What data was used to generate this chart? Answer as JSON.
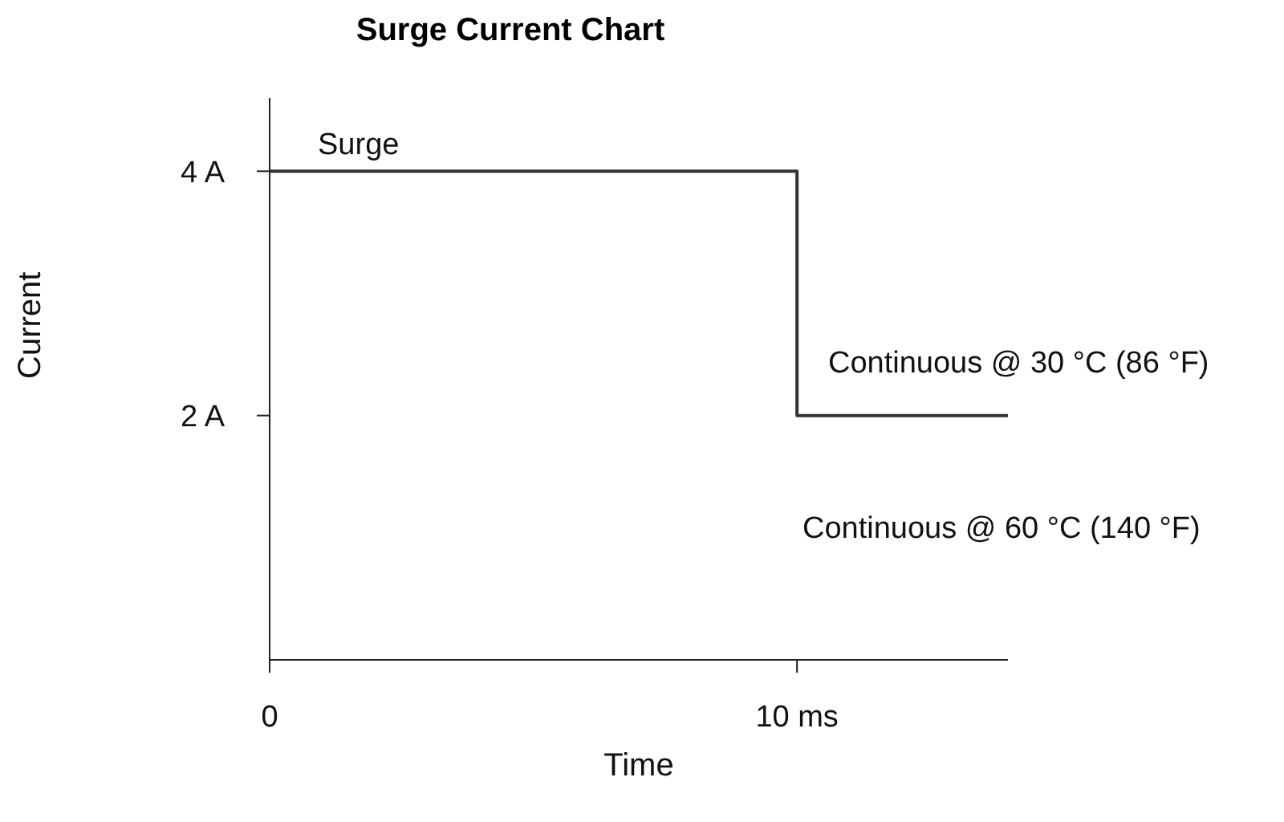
{
  "chart_data": {
    "type": "step",
    "title": "Surge Current Chart",
    "xlabel": "Time",
    "ylabel": "Current",
    "x": [
      0,
      10,
      14
    ],
    "series": [
      {
        "color": "#333333",
        "values": [
          4,
          2,
          2
        ]
      }
    ],
    "xlim": [
      0,
      14
    ],
    "xticks": [
      {
        "value": 0,
        "label": "0"
      },
      {
        "value": 10,
        "label": "10 ms"
      }
    ],
    "ylim": [
      0,
      4.6
    ],
    "yticks": [
      {
        "value": 2,
        "label": "2 A"
      },
      {
        "value": 4,
        "label": "4 A"
      }
    ],
    "annotations": [
      "Surge",
      "Continuous @ 30 °C (86 °F)",
      "Continuous @ 60 °C (140 °F)"
    ],
    "grid": false,
    "legend": false,
    "marker": "none",
    "line_style": "solid"
  }
}
